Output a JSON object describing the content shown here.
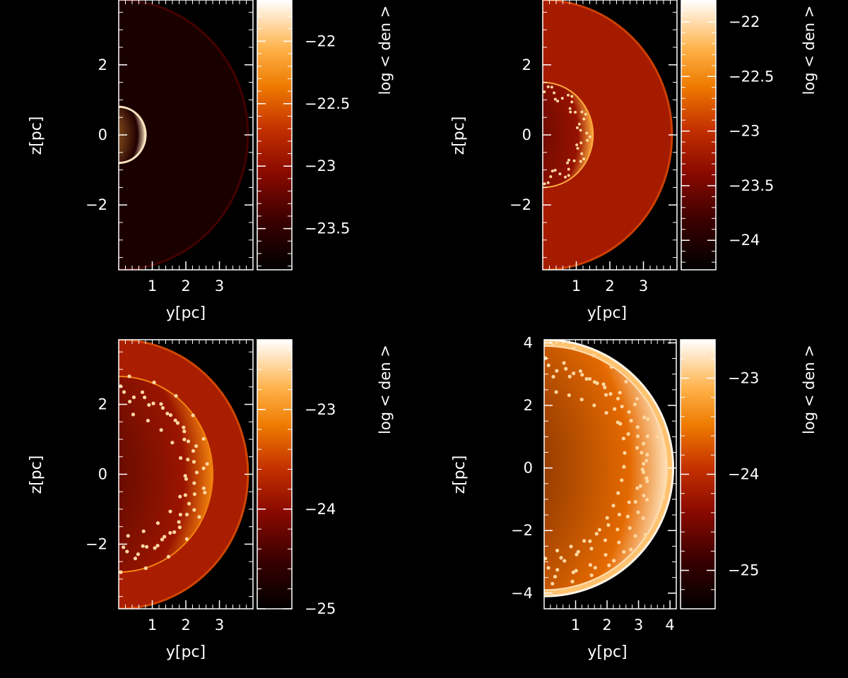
{
  "chart_data": [
    {
      "type": "heatmap",
      "title": "",
      "xlabel": "y[pc]",
      "ylabel": "z[pc]",
      "colorbar_label": "log < den >",
      "xlim": [
        0,
        4
      ],
      "ylim": [
        -3.85,
        3.85
      ],
      "x_ticks": [
        1,
        2,
        3
      ],
      "x_tick_labels": [
        "1",
        "2",
        "3"
      ],
      "y_ticks": [
        2,
        0,
        -2
      ],
      "y_tick_labels": [
        "2",
        "0",
        "−2"
      ],
      "colorbar_range": [
        -23.83,
        -21.67
      ],
      "colorbar_ticks": [
        -22,
        -22.5,
        -23,
        -23.5
      ],
      "colorbar_tick_labels": [
        "−22",
        "−22.5",
        "−23",
        "−23.5"
      ],
      "field": {
        "shell_radius_pc": 3.85,
        "bubble_radius_pc": 0.8,
        "shell_value": -23.65,
        "bubble_value": -22.1,
        "rim_value": -21.8,
        "interior_value": -23.6
      }
    },
    {
      "type": "heatmap",
      "title": "",
      "xlabel": "y[pc]",
      "ylabel": "z[pc]",
      "colorbar_label": "log < den >",
      "xlim": [
        0,
        4
      ],
      "ylim": [
        -3.85,
        3.85
      ],
      "x_ticks": [
        1,
        2,
        3
      ],
      "x_tick_labels": [
        "1",
        "2",
        "3"
      ],
      "y_ticks": [
        2,
        0,
        -2
      ],
      "y_tick_labels": [
        "2",
        "0",
        "−2"
      ],
      "colorbar_range": [
        -24.27,
        -21.8
      ],
      "colorbar_ticks": [
        -22,
        -22.5,
        -23,
        -23.5,
        -24
      ],
      "colorbar_tick_labels": [
        "−22",
        "−22.5",
        "−23",
        "−23.5",
        "−24"
      ],
      "field": {
        "shell_radius_pc": 3.85,
        "bubble_radius_pc": 1.5,
        "shell_value": -23.2,
        "bubble_value": -23.8,
        "rim_value": -22.3,
        "interior_value": -23.3
      }
    },
    {
      "type": "heatmap",
      "title": "",
      "xlabel": "y[pc]",
      "ylabel": "z[pc]",
      "colorbar_label": "log < den >",
      "xlim": [
        0,
        4
      ],
      "ylim": [
        -3.85,
        3.85
      ],
      "x_ticks": [
        1,
        2,
        3
      ],
      "x_tick_labels": [
        "1",
        "2",
        "3"
      ],
      "y_ticks": [
        2,
        0,
        -2
      ],
      "y_tick_labels": [
        "2",
        "0",
        "−2"
      ],
      "colorbar_range": [
        -25,
        -22.3
      ],
      "colorbar_ticks": [
        -23,
        -24,
        -25
      ],
      "colorbar_tick_labels": [
        "−23",
        "−24",
        "−25"
      ],
      "field": {
        "shell_radius_pc": 3.85,
        "bubble_radius_pc": 2.8,
        "shell_value": -23.8,
        "bubble_value": -24.7,
        "rim_value": -23.1,
        "interior_value": -23.9
      }
    },
    {
      "type": "heatmap",
      "title": "",
      "xlabel": "y[pc]",
      "ylabel": "z[pc]",
      "colorbar_label": "log < den >",
      "xlim": [
        0,
        4.2
      ],
      "ylim": [
        -4.5,
        4.1
      ],
      "x_ticks": [
        1,
        2,
        3,
        4
      ],
      "x_tick_labels": [
        "1",
        "2",
        "3",
        "4"
      ],
      "y_ticks": [
        4,
        2,
        0,
        -2,
        -4
      ],
      "y_tick_labels": [
        "4",
        "2",
        "0",
        "−2",
        "−4"
      ],
      "colorbar_range": [
        -25.4,
        -22.6
      ],
      "colorbar_ticks": [
        -23,
        -24,
        -25
      ],
      "colorbar_tick_labels": [
        "−23",
        "−24",
        "−25"
      ],
      "field": {
        "shell_radius_pc": 4.1,
        "bubble_radius_pc": 3.9,
        "shell_value": -23.0,
        "bubble_value": -25.0,
        "rim_value": -22.8,
        "interior_value": -23.6
      }
    }
  ]
}
